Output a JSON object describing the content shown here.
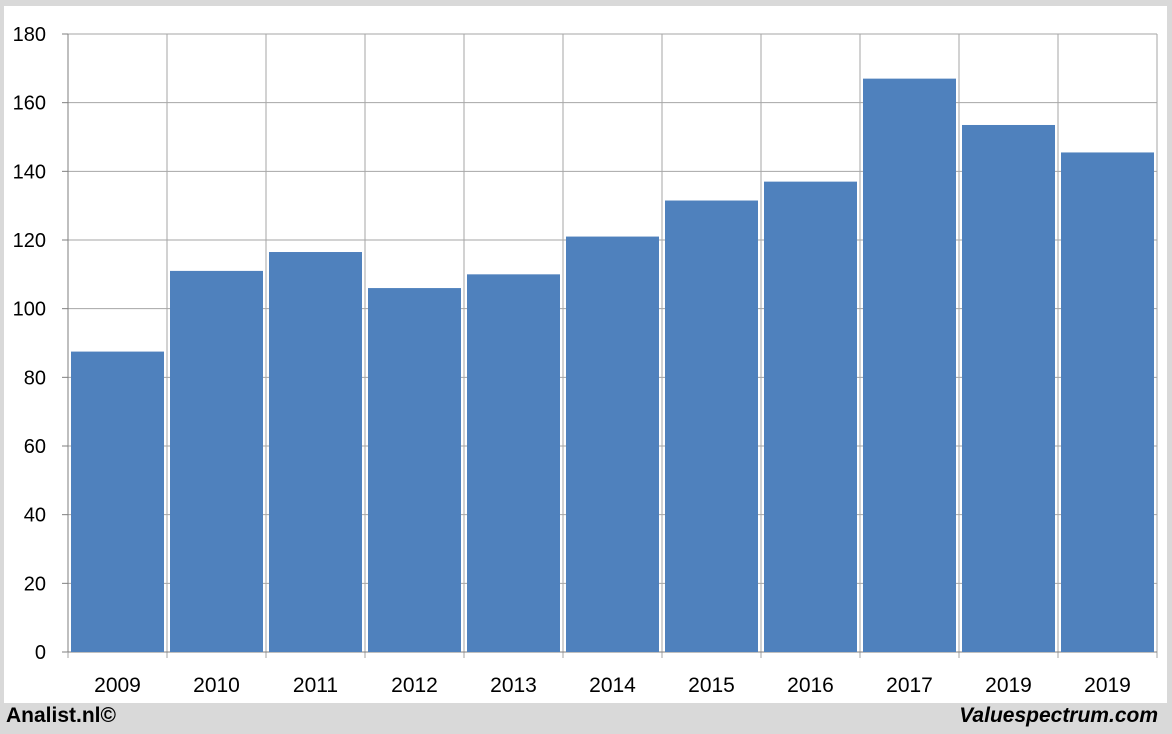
{
  "footer": {
    "left_text": "Analist.nl©",
    "right_text": "Valuespectrum.com"
  },
  "colors": {
    "bar": "#4f81bd",
    "grid": "#a6a6a6",
    "background": "#ffffff",
    "frame": "#d9d9d9"
  },
  "chart_data": {
    "type": "bar",
    "categories": [
      "2009",
      "2010",
      "2011",
      "2012",
      "2013",
      "2014",
      "2015",
      "2016",
      "2017",
      "2019",
      "2019"
    ],
    "values": [
      87.5,
      111,
      116.5,
      106,
      110,
      121,
      131.5,
      137,
      167,
      153.5,
      145.5
    ],
    "title": "",
    "xlabel": "",
    "ylabel": "",
    "ylim": [
      0,
      180
    ],
    "yticks": [
      0,
      20,
      40,
      60,
      80,
      100,
      120,
      140,
      160,
      180
    ],
    "grid": true,
    "legend": "none"
  }
}
